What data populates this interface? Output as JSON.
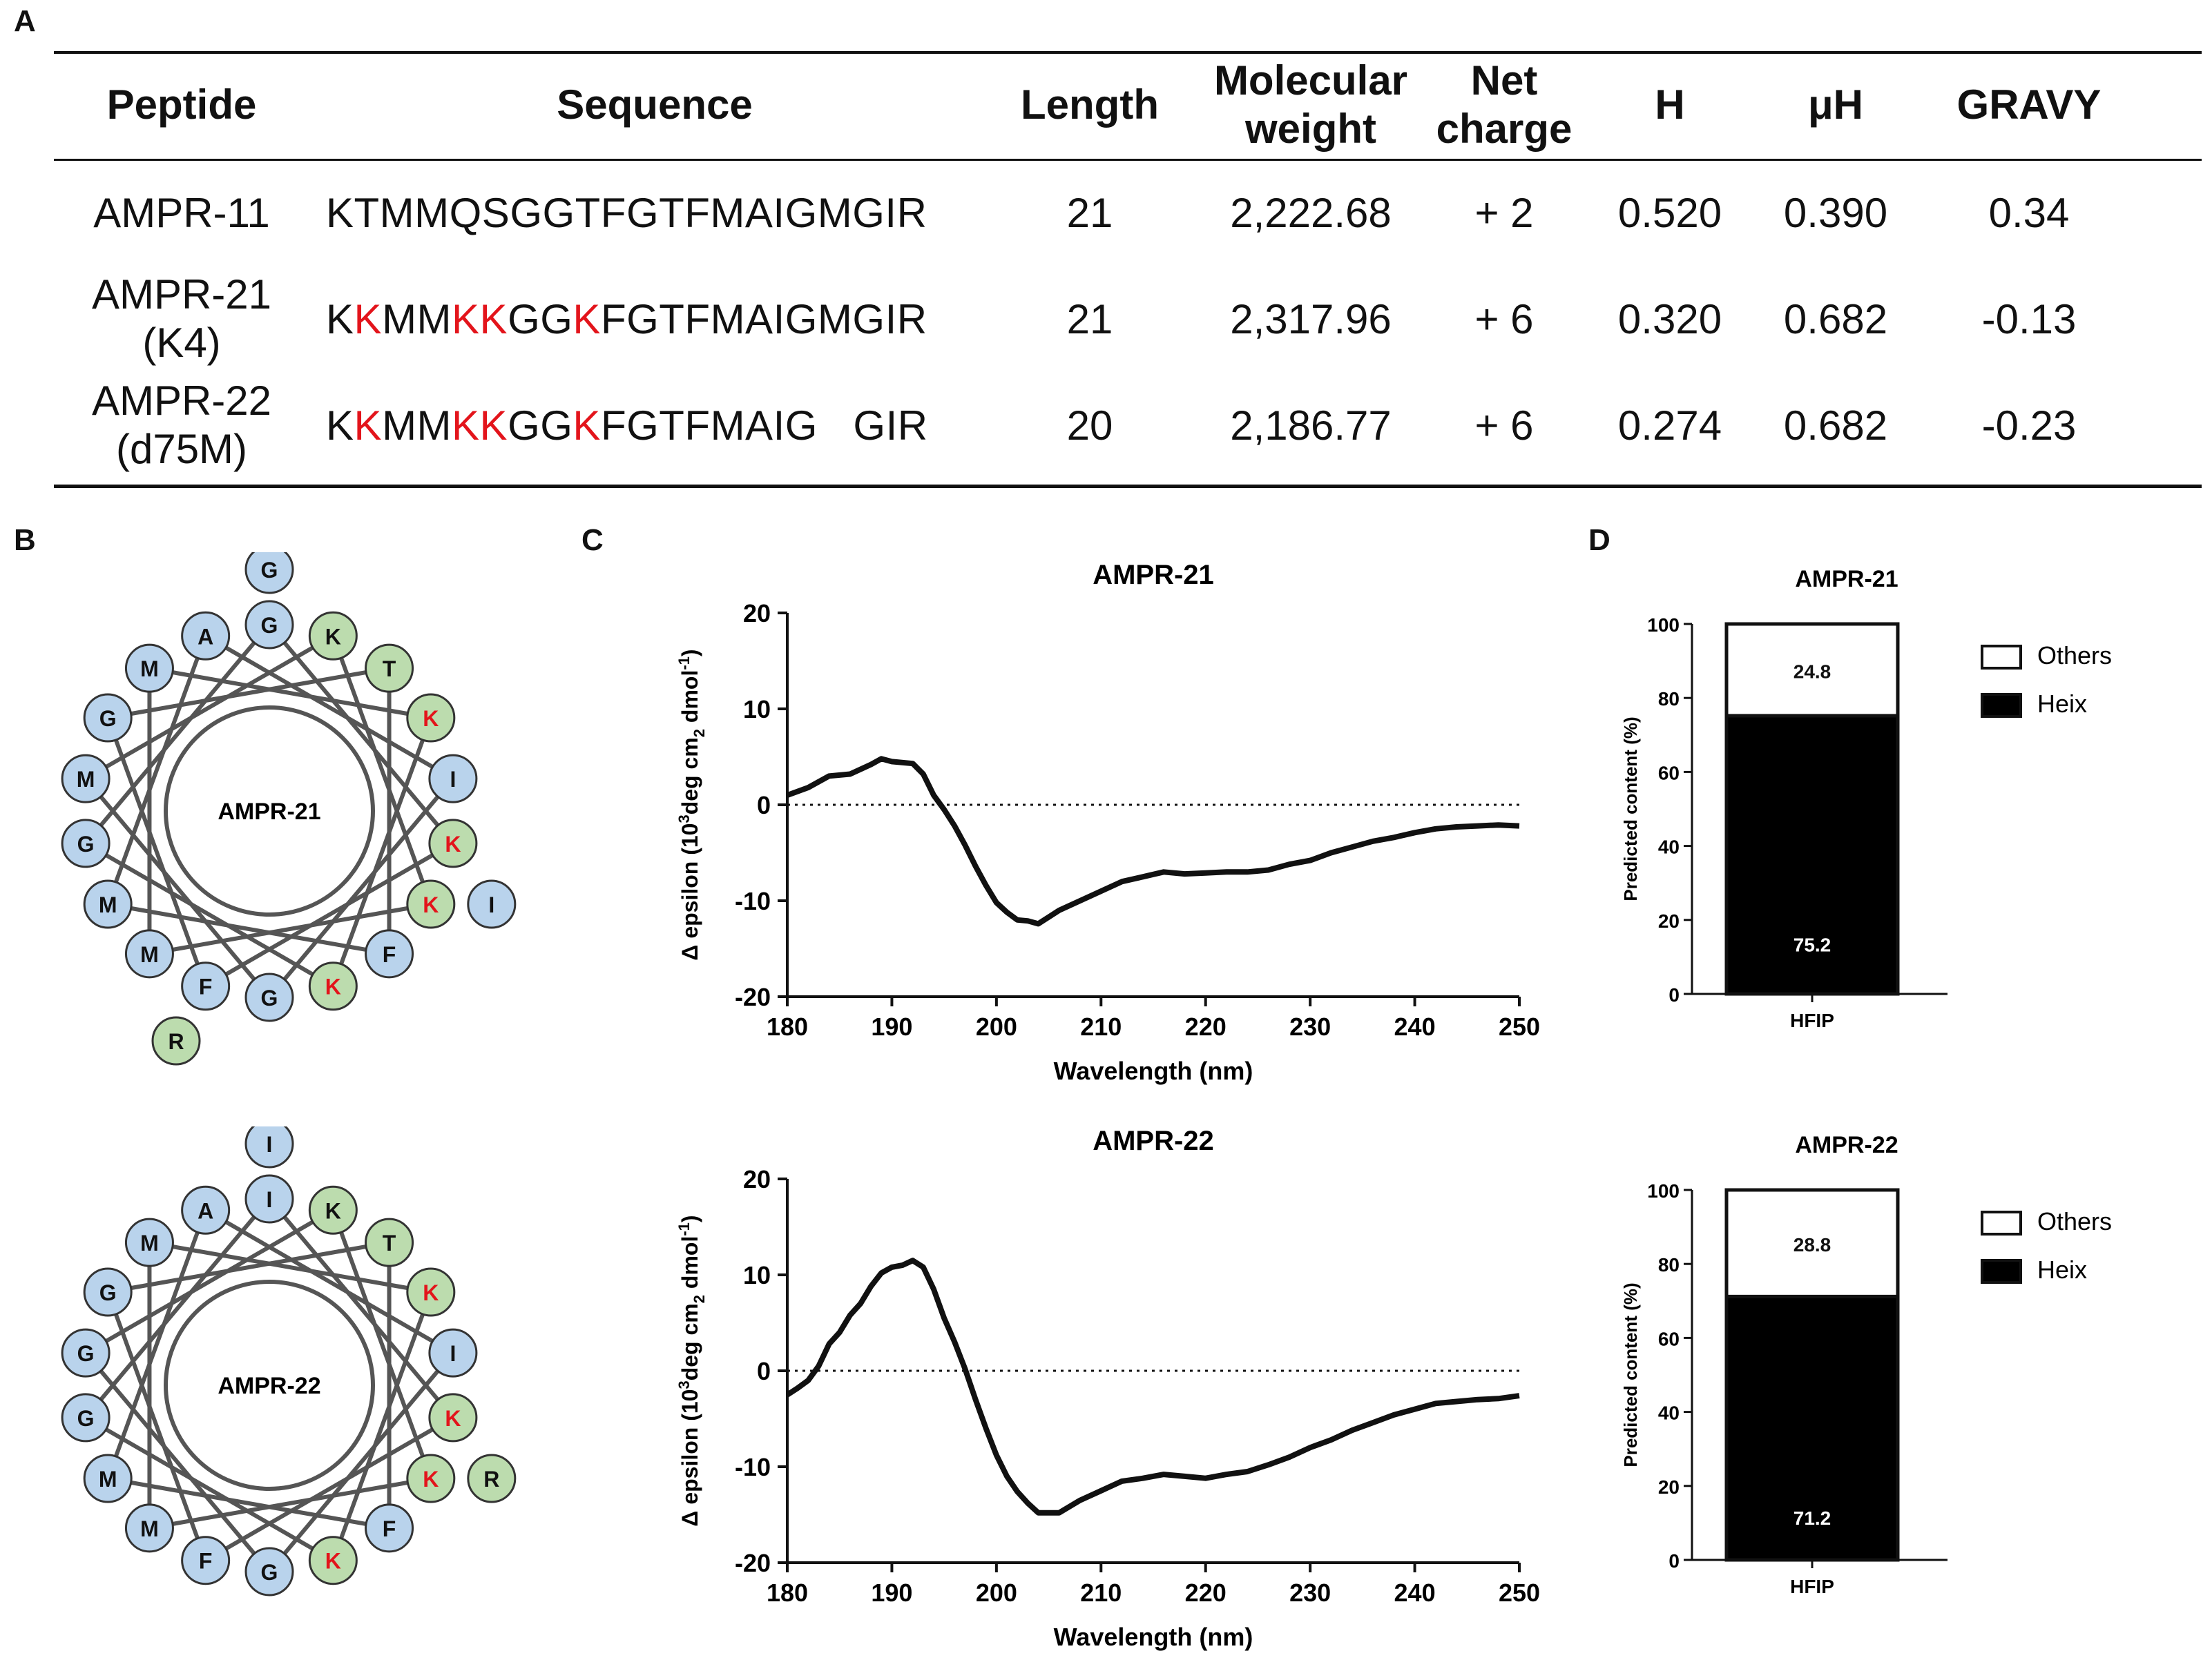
{
  "panel_labels": {
    "a": "A",
    "b": "B",
    "c": "C",
    "d": "D"
  },
  "table": {
    "headers": {
      "peptide": "Peptide",
      "sequence": "Sequence",
      "length": "Length",
      "mw_line1": "Molecular",
      "mw_line2": "weight",
      "charge_line1": "Net",
      "charge_line2": "charge",
      "h": "H",
      "muh": "μH",
      "gravy": "GRAVY"
    },
    "rows": [
      {
        "name_line1": "AMPR-11",
        "name_line2": "",
        "seq": [
          {
            "t": "KTMMQSGGTFGTFMAIGMGIR",
            "red": false
          }
        ],
        "length": "21",
        "mw": "2,222.68",
        "charge": "+ 2",
        "h": "0.520",
        "muh": "0.390",
        "gravy": "0.34"
      },
      {
        "name_line1": "AMPR-21",
        "name_line2": "(K4)",
        "seq": [
          {
            "t": "K",
            "red": false
          },
          {
            "t": "K",
            "red": true
          },
          {
            "t": "MM",
            "red": false
          },
          {
            "t": "KK",
            "red": true
          },
          {
            "t": "GG",
            "red": false
          },
          {
            "t": "K",
            "red": true
          },
          {
            "t": "FGTFMAIGMGIR",
            "red": false
          }
        ],
        "length": "21",
        "mw": "2,317.96",
        "charge": "+ 6",
        "h": "0.320",
        "muh": "0.682",
        "gravy": "-0.13"
      },
      {
        "name_line1": "AMPR-22",
        "name_line2": "(d75M)",
        "seq": [
          {
            "t": "K",
            "red": false
          },
          {
            "t": "K",
            "red": true
          },
          {
            "t": "MM",
            "red": false
          },
          {
            "t": "KK",
            "red": true
          },
          {
            "t": "GG",
            "red": false
          },
          {
            "t": "K",
            "red": true
          },
          {
            "t": "FGTFMAIG   GIR",
            "red": false
          }
        ],
        "length": "20",
        "mw": "2,186.77",
        "charge": "+ 6",
        "h": "0.274",
        "muh": "0.682",
        "gravy": "-0.23"
      }
    ]
  },
  "wheels": [
    {
      "center_label": "AMPR-21",
      "residues": [
        {
          "aa": "G",
          "type": "hydrophobic",
          "red": false
        },
        {
          "aa": "K",
          "type": "polar",
          "red": false
        },
        {
          "aa": "T",
          "type": "polar",
          "red": false
        },
        {
          "aa": "K",
          "type": "polar",
          "red": true
        },
        {
          "aa": "I",
          "type": "hydrophobic",
          "red": false
        },
        {
          "aa": "K",
          "type": "polar",
          "red": true
        },
        {
          "aa": "K",
          "type": "polar",
          "red": true
        },
        {
          "aa": "F",
          "type": "hydrophobic",
          "red": false
        },
        {
          "aa": "K",
          "type": "polar",
          "red": true
        },
        {
          "aa": "G",
          "type": "hydrophobic",
          "red": false
        },
        {
          "aa": "F",
          "type": "hydrophobic",
          "red": false
        },
        {
          "aa": "M",
          "type": "hydrophobic",
          "red": false
        },
        {
          "aa": "M",
          "type": "hydrophobic",
          "red": false
        },
        {
          "aa": "G",
          "type": "hydrophobic",
          "red": false
        },
        {
          "aa": "M",
          "type": "hydrophobic",
          "red": false
        },
        {
          "aa": "G",
          "type": "hydrophobic",
          "red": false
        },
        {
          "aa": "M",
          "type": "hydrophobic",
          "red": false
        },
        {
          "aa": "A",
          "type": "hydrophobic",
          "red": false
        }
      ],
      "extras": [
        {
          "aa": "G",
          "type": "hydrophobic",
          "red": false,
          "pos": "top"
        },
        {
          "aa": "I",
          "type": "hydrophobic",
          "red": false,
          "pos": "right"
        },
        {
          "aa": "R",
          "type": "polar",
          "red": false,
          "pos": "bottom-left"
        }
      ]
    },
    {
      "center_label": "AMPR-22",
      "residues": [
        {
          "aa": "I",
          "type": "hydrophobic",
          "red": false
        },
        {
          "aa": "K",
          "type": "polar",
          "red": false
        },
        {
          "aa": "T",
          "type": "polar",
          "red": false
        },
        {
          "aa": "K",
          "type": "polar",
          "red": true
        },
        {
          "aa": "I",
          "type": "hydrophobic",
          "red": false
        },
        {
          "aa": "K",
          "type": "polar",
          "red": true
        },
        {
          "aa": "K",
          "type": "polar",
          "red": true
        },
        {
          "aa": "F",
          "type": "hydrophobic",
          "red": false
        },
        {
          "aa": "K",
          "type": "polar",
          "red": true
        },
        {
          "aa": "G",
          "type": "hydrophobic",
          "red": false
        },
        {
          "aa": "F",
          "type": "hydrophobic",
          "red": false
        },
        {
          "aa": "M",
          "type": "hydrophobic",
          "red": false
        },
        {
          "aa": "M",
          "type": "hydrophobic",
          "red": false
        },
        {
          "aa": "G",
          "type": "hydrophobic",
          "red": false
        },
        {
          "aa": "G",
          "type": "hydrophobic",
          "red": false
        },
        {
          "aa": "G",
          "type": "hydrophobic",
          "red": false
        },
        {
          "aa": "M",
          "type": "hydrophobic",
          "red": false
        },
        {
          "aa": "A",
          "type": "hydrophobic",
          "red": false
        }
      ],
      "extras": [
        {
          "aa": "I",
          "type": "hydrophobic",
          "red": false,
          "pos": "top"
        },
        {
          "aa": "R",
          "type": "polar",
          "red": false,
          "pos": "right"
        }
      ]
    }
  ],
  "colors": {
    "hydrophobic_fill": "#b9d3ec",
    "polar_fill": "#bcdcae",
    "red_text": "#e3141b",
    "line": "#111111"
  },
  "chart_data": [
    {
      "type": "line",
      "title": "AMPR-21",
      "xlabel": "Wavelength (nm)",
      "ylabel_prefix": "Δ epsilon (10",
      "ylabel_sup": "3",
      "ylabel_mid": "deg cm",
      "ylabel_sub": "2",
      "ylabel_end": " dmol",
      "ylabel_sup2": "-1",
      "ylabel_close": ")",
      "xlim": [
        180,
        250
      ],
      "ylim": [
        -20,
        20
      ],
      "xticks": [
        "180",
        "190",
        "200",
        "210",
        "220",
        "230",
        "240",
        "250"
      ],
      "yticks": [
        "-20",
        "-10",
        "0",
        "10",
        "20"
      ],
      "x": [
        180,
        182,
        184,
        186,
        188,
        189,
        190,
        192,
        193,
        194,
        195,
        196,
        197,
        198,
        199,
        200,
        201,
        202,
        203,
        204,
        206,
        208,
        210,
        212,
        214,
        216,
        218,
        220,
        222,
        224,
        226,
        228,
        230,
        232,
        234,
        236,
        238,
        240,
        242,
        244,
        246,
        248,
        250
      ],
      "y": [
        1.0,
        1.8,
        3.0,
        3.2,
        4.2,
        4.8,
        4.5,
        4.3,
        3.2,
        1.0,
        -0.5,
        -2.2,
        -4.2,
        -6.4,
        -8.4,
        -10.2,
        -11.2,
        -12.0,
        -12.1,
        -12.4,
        -11.0,
        -10.0,
        -9.0,
        -8.0,
        -7.5,
        -7.0,
        -7.2,
        -7.1,
        -7.0,
        -7.0,
        -6.8,
        -6.2,
        -5.8,
        -5.0,
        -4.4,
        -3.8,
        -3.4,
        -2.9,
        -2.5,
        -2.3,
        -2.2,
        -2.1,
        -2.2
      ]
    },
    {
      "type": "line",
      "title": "AMPR-22",
      "xlabel": "Wavelength (nm)",
      "ylabel_prefix": "Δ epsilon (10",
      "ylabel_sup": "3",
      "ylabel_mid": "deg cm",
      "ylabel_sub": "2",
      "ylabel_end": " dmol",
      "ylabel_sup2": "-1",
      "ylabel_close": ")",
      "xlim": [
        180,
        250
      ],
      "ylim": [
        -20,
        20
      ],
      "xticks": [
        "180",
        "190",
        "200",
        "210",
        "220",
        "230",
        "240",
        "250"
      ],
      "yticks": [
        "-20",
        "-10",
        "0",
        "10",
        "20"
      ],
      "x": [
        180,
        181,
        182,
        183,
        184,
        185,
        186,
        187,
        188,
        189,
        190,
        191,
        192,
        193,
        194,
        195,
        196,
        197,
        198,
        199,
        200,
        201,
        202,
        203,
        204,
        206,
        208,
        210,
        212,
        214,
        216,
        218,
        220,
        222,
        224,
        226,
        228,
        230,
        232,
        234,
        236,
        238,
        240,
        242,
        244,
        246,
        248,
        250
      ],
      "y": [
        -2.5,
        -1.8,
        -1.0,
        0.5,
        2.8,
        4.0,
        5.8,
        7.0,
        8.8,
        10.2,
        10.8,
        11.0,
        11.5,
        10.8,
        8.5,
        5.5,
        3.0,
        0.2,
        -3.0,
        -6.0,
        -8.8,
        -11.0,
        -12.6,
        -13.8,
        -14.8,
        -14.8,
        -13.5,
        -12.5,
        -11.5,
        -11.2,
        -10.8,
        -11.0,
        -11.2,
        -10.8,
        -10.5,
        -9.8,
        -9.0,
        -8.0,
        -7.2,
        -6.2,
        -5.4,
        -4.6,
        -4.0,
        -3.4,
        -3.2,
        -3.0,
        -2.9,
        -2.6
      ]
    },
    {
      "type": "bar",
      "stacked": true,
      "title": "AMPR-21",
      "categories": [
        "HFIP"
      ],
      "series": [
        {
          "name": "Heix",
          "values": [
            75.2
          ],
          "label": "75.2",
          "color": "#000000"
        },
        {
          "name": "Others",
          "values": [
            24.8
          ],
          "label": "24.8",
          "color": "#ffffff"
        }
      ],
      "ylabel": "Predicted content (%)",
      "ylim": [
        0,
        100
      ],
      "yticks": [
        "0",
        "20",
        "40",
        "60",
        "80",
        "100"
      ],
      "legend": [
        "Others",
        "Heix"
      ],
      "legend_position": "right"
    },
    {
      "type": "bar",
      "stacked": true,
      "title": "AMPR-22",
      "categories": [
        "HFIP"
      ],
      "series": [
        {
          "name": "Heix",
          "values": [
            71.2
          ],
          "label": "71.2",
          "color": "#000000"
        },
        {
          "name": "Others",
          "values": [
            28.8
          ],
          "label": "28.8",
          "color": "#ffffff"
        }
      ],
      "ylabel": "Predicted content (%)",
      "ylim": [
        0,
        100
      ],
      "yticks": [
        "0",
        "20",
        "40",
        "60",
        "80",
        "100"
      ],
      "legend": [
        "Others",
        "Heix"
      ],
      "legend_position": "right"
    }
  ]
}
